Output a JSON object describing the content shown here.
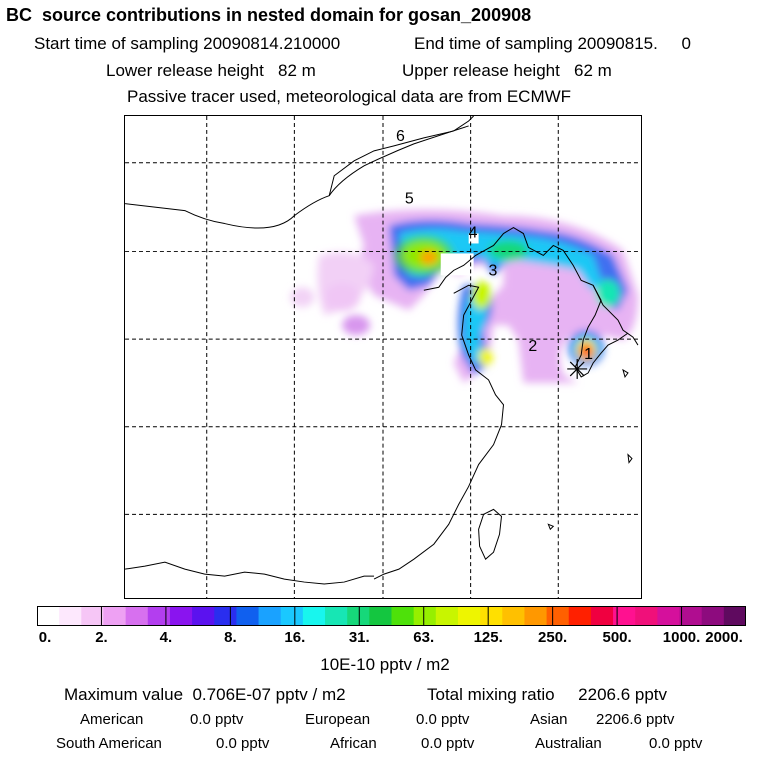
{
  "header": {
    "title": "BC  source contributions in nested domain for gosan_200908",
    "start_label": "Start time of sampling 20090814.210000",
    "end_label": "End time of sampling 20090815.     0",
    "lower_label": "Lower release height   82 m",
    "upper_label": "Upper release height   62 m",
    "tracer_note": "Passive tracer used, meteorological data are from ECMWF"
  },
  "chart_data": {
    "type": "heatmap",
    "title": "BC  source contributions in nested domain for gosan_200908",
    "point_labels": [
      "1",
      "2",
      "3",
      "4",
      "5",
      "6"
    ],
    "colorbar": {
      "tick_labels": [
        "0.",
        "2.",
        "4.",
        "8.",
        "16.",
        "31.",
        "63.",
        "125.",
        "250.",
        "500.",
        "1000.",
        "2000."
      ],
      "unit_label": "10E-10 pptv / m2",
      "colors": [
        "#ffffff",
        "#fde8fd",
        "#f6c6f6",
        "#eea1f3",
        "#d770ef",
        "#b33eef",
        "#8a14ef",
        "#5b12ef",
        "#2a2eef",
        "#1060ef",
        "#1aa2ff",
        "#1ac8ff",
        "#18f6ee",
        "#17e6b4",
        "#16d87a",
        "#14c640",
        "#4ee10a",
        "#96ef00",
        "#c8f500",
        "#eef500",
        "#ffe000",
        "#ffc000",
        "#ff9800",
        "#ff6000",
        "#ff2000",
        "#f00040",
        "#ff1190",
        "#f0107a",
        "#d5109c",
        "#b00d90",
        "#8d0b7e",
        "#5f0a5f"
      ]
    },
    "grid": true
  },
  "stats": {
    "max_label": "Maximum value  0.706E-07 pptv / m2",
    "total_label": "Total mixing ratio     2206.6 pptv",
    "american_label": "American",
    "american_val": "0.0 pptv",
    "european_label": "European",
    "european_val": "0.0 pptv",
    "asian_label": "Asian",
    "asian_val": "2206.6 pptv",
    "south_american_label": "South American",
    "south_american_val": "0.0 pptv",
    "african_label": "African",
    "african_val": "0.0 pptv",
    "australian_label": "Australian",
    "australian_val": "0.0 pptv"
  }
}
